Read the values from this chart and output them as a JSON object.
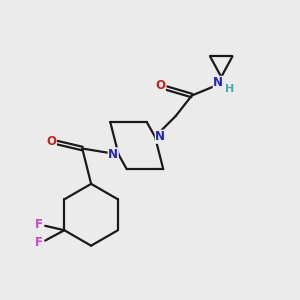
{
  "bg_color": "#ebebeb",
  "bond_color": "#1a1a1a",
  "N_color": "#2222cc",
  "O_color": "#cc2020",
  "F_color": "#cc44cc",
  "H_color": "#44aaaa",
  "line_width": 1.6,
  "font_size_atom": 8.5,
  "fig_width": 3.0,
  "fig_height": 3.0,
  "xlim": [
    0,
    10
  ],
  "ylim": [
    0,
    10
  ]
}
